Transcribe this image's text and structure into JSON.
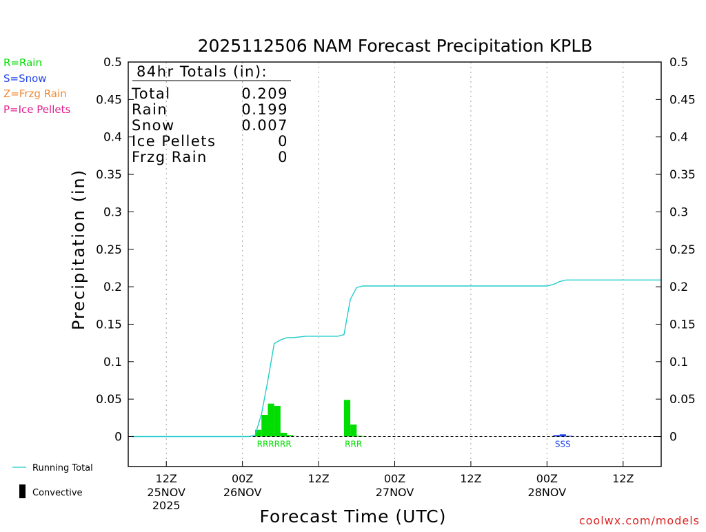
{
  "chart_data": {
    "type": "bar",
    "title": "2025112506 NAM Forecast Precipitation KPLB",
    "xlabel": "Forecast Time (UTC)",
    "ylabel": "Precipitation (in)",
    "ylim": [
      -0.04,
      0.5
    ],
    "y_ticks": [
      0,
      0.05,
      0.1,
      0.15,
      0.2,
      0.25,
      0.3,
      0.35,
      0.4,
      0.45,
      0.5
    ],
    "y_tick_labels": [
      "0",
      "0.05",
      "0.1",
      "0.15",
      "0.2",
      "0.25",
      "0.3",
      "0.35",
      "0.4",
      "0.45",
      "0.5"
    ],
    "xlim_hours": [
      0,
      84
    ],
    "x_ticks": [
      {
        "hour": 6,
        "label": "12Z",
        "sub": "25NOV",
        "sub2": "2025"
      },
      {
        "hour": 18,
        "label": "00Z",
        "sub": "26NOV",
        "sub2": ""
      },
      {
        "hour": 30,
        "label": "12Z",
        "sub": "",
        "sub2": ""
      },
      {
        "hour": 42,
        "label": "00Z",
        "sub": "27NOV",
        "sub2": ""
      },
      {
        "hour": 54,
        "label": "12Z",
        "sub": "",
        "sub2": ""
      },
      {
        "hour": 66,
        "label": "00Z",
        "sub": "28NOV",
        "sub2": ""
      },
      {
        "hour": 78,
        "label": "12Z",
        "sub": "",
        "sub2": ""
      }
    ],
    "grid": true,
    "series": [
      {
        "name": "Rain",
        "color": "#00dd00",
        "type_letter": "R",
        "bars": [
          {
            "hour": 20.5,
            "value": 0.009
          },
          {
            "hour": 21.5,
            "value": 0.029
          },
          {
            "hour": 22.5,
            "value": 0.044
          },
          {
            "hour": 23.5,
            "value": 0.041
          },
          {
            "hour": 24.5,
            "value": 0.005
          },
          {
            "hour": 25.5,
            "value": 0.002
          },
          {
            "hour": 34.5,
            "value": 0.049
          },
          {
            "hour": 35.5,
            "value": 0.016
          },
          {
            "hour": 36.5,
            "value": 0.001
          }
        ]
      },
      {
        "name": "Snow",
        "color": "#2244ee",
        "type_letter": "S",
        "bars": [
          {
            "hour": 67.5,
            "value": 0.002
          },
          {
            "hour": 68.5,
            "value": 0.003
          },
          {
            "hour": 69.5,
            "value": 0.001
          }
        ]
      }
    ],
    "type_labels": [
      {
        "hour": 23,
        "text": "RRRRRR",
        "color": "#00dd00"
      },
      {
        "hour": 35.5,
        "text": "RRR",
        "color": "#00dd00"
      },
      {
        "hour": 68.5,
        "text": "SSS",
        "color": "#2244ee"
      }
    ],
    "running_total": {
      "name": "Running Total",
      "color": "#22cccc",
      "points": [
        [
          0.6,
          0
        ],
        [
          6,
          0
        ],
        [
          12,
          0
        ],
        [
          18,
          0
        ],
        [
          19,
          0
        ],
        [
          20,
          0.002
        ],
        [
          21,
          0.03
        ],
        [
          22,
          0.075
        ],
        [
          23,
          0.124
        ],
        [
          24,
          0.129
        ],
        [
          25,
          0.132
        ],
        [
          26,
          0.132
        ],
        [
          28,
          0.134
        ],
        [
          30,
          0.134
        ],
        [
          33,
          0.134
        ],
        [
          34,
          0.136
        ],
        [
          35,
          0.183
        ],
        [
          36,
          0.199
        ],
        [
          37,
          0.201
        ],
        [
          42,
          0.201
        ],
        [
          54,
          0.201
        ],
        [
          66,
          0.201
        ],
        [
          67,
          0.203
        ],
        [
          68,
          0.207
        ],
        [
          69,
          0.209
        ],
        [
          72,
          0.209
        ],
        [
          78,
          0.209
        ],
        [
          84,
          0.209
        ]
      ]
    }
  },
  "totals_box": {
    "heading": "84hr Totals (in):",
    "rows": [
      {
        "label": "Total",
        "value": "0.209"
      },
      {
        "label": "Rain",
        "value": "0.199"
      },
      {
        "label": "Snow",
        "value": "0.007"
      },
      {
        "label": "Ice Pellets",
        "value": "0"
      },
      {
        "label": "Frzg Rain",
        "value": "0"
      }
    ]
  },
  "type_legend": [
    {
      "text": "R=Rain",
      "color": "#00dd00"
    },
    {
      "text": "S=Snow",
      "color": "#2244ee"
    },
    {
      "text": "Z=Frzg Rain",
      "color": "#f08830"
    },
    {
      "text": "P=Ice Pellets",
      "color": "#e0208a"
    }
  ],
  "series_legend": {
    "running_total_label": "Running Total",
    "convective_label": "Convective"
  },
  "credit": "coolwx.com/models",
  "colors": {
    "running_total": "#22cccc",
    "rain": "#00dd00",
    "snow": "#2244ee",
    "frzg_rain": "#f08830",
    "ice_pellets": "#e0208a",
    "credit": "#dd2222"
  }
}
